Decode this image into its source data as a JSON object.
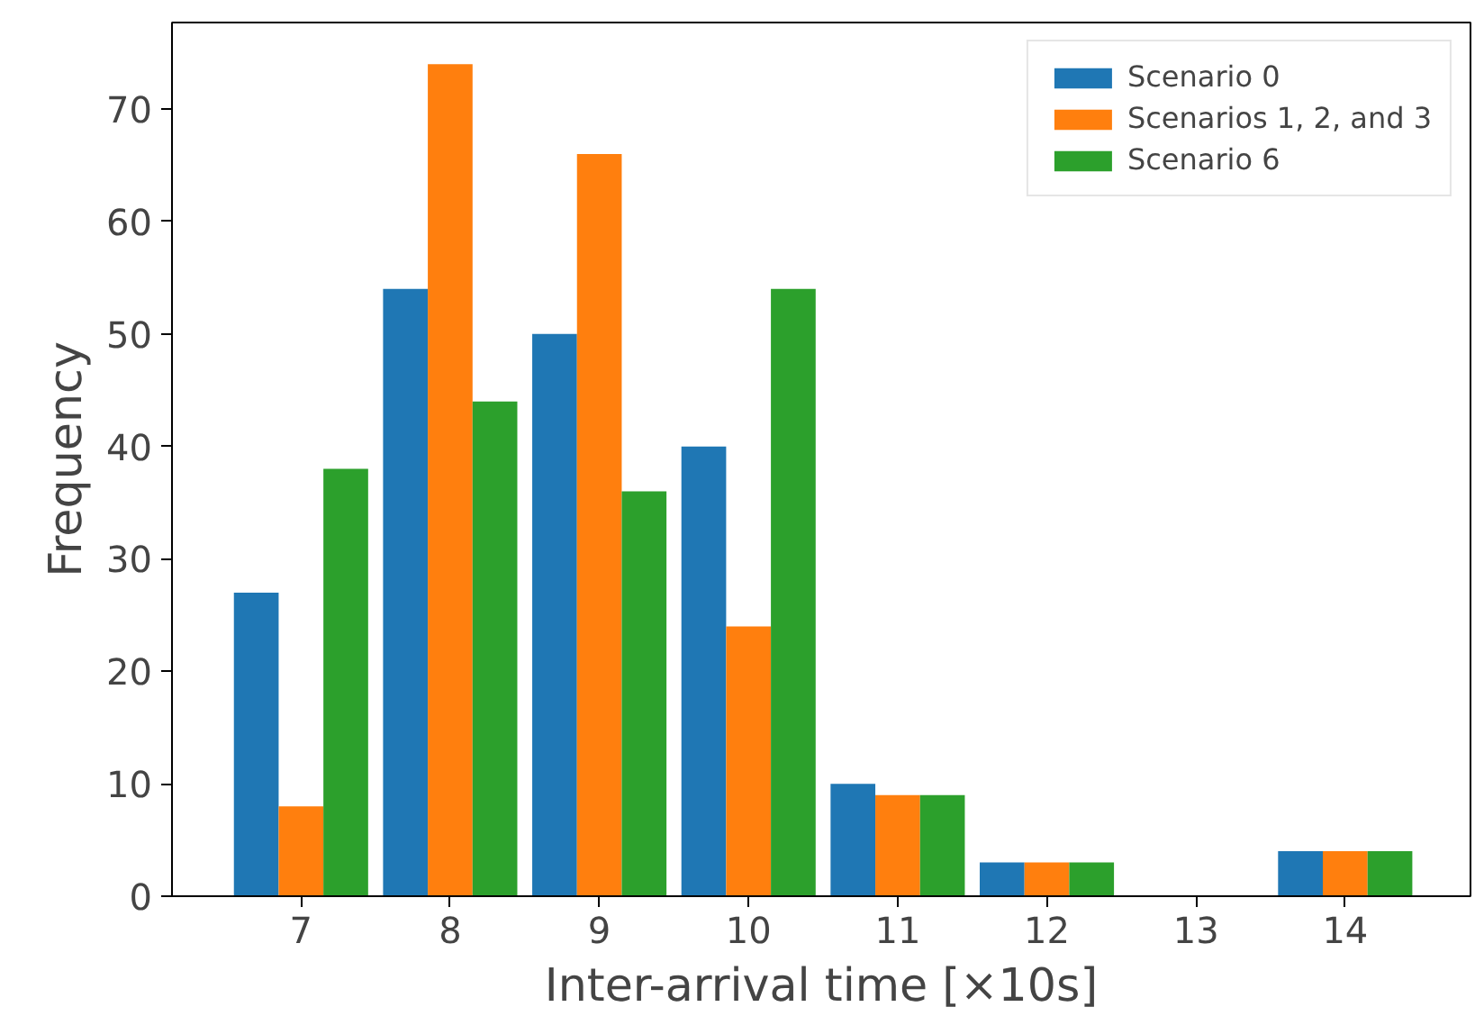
{
  "chart_data": {
    "type": "bar",
    "xlabel": "Inter-arrival time [×10s]",
    "ylabel": "Frequency",
    "categories": [
      "7",
      "8",
      "9",
      "10",
      "11",
      "12",
      "13",
      "14"
    ],
    "series": [
      {
        "name": "Scenario 0",
        "color": "#1f77b4",
        "values": [
          27,
          54,
          50,
          40,
          10,
          3,
          0,
          4
        ]
      },
      {
        "name": "Scenarios 1, 2, and 3",
        "color": "#ff7f0e",
        "values": [
          8,
          74,
          66,
          24,
          9,
          3,
          0,
          4
        ]
      },
      {
        "name": "Scenario 6",
        "color": "#2ca02c",
        "values": [
          38,
          44,
          36,
          54,
          9,
          3,
          0,
          4
        ]
      }
    ],
    "ylim": [
      0,
      77.7
    ],
    "yticks": [
      0,
      10,
      20,
      30,
      40,
      50,
      60,
      70
    ],
    "grid": false,
    "legend": "top right"
  }
}
